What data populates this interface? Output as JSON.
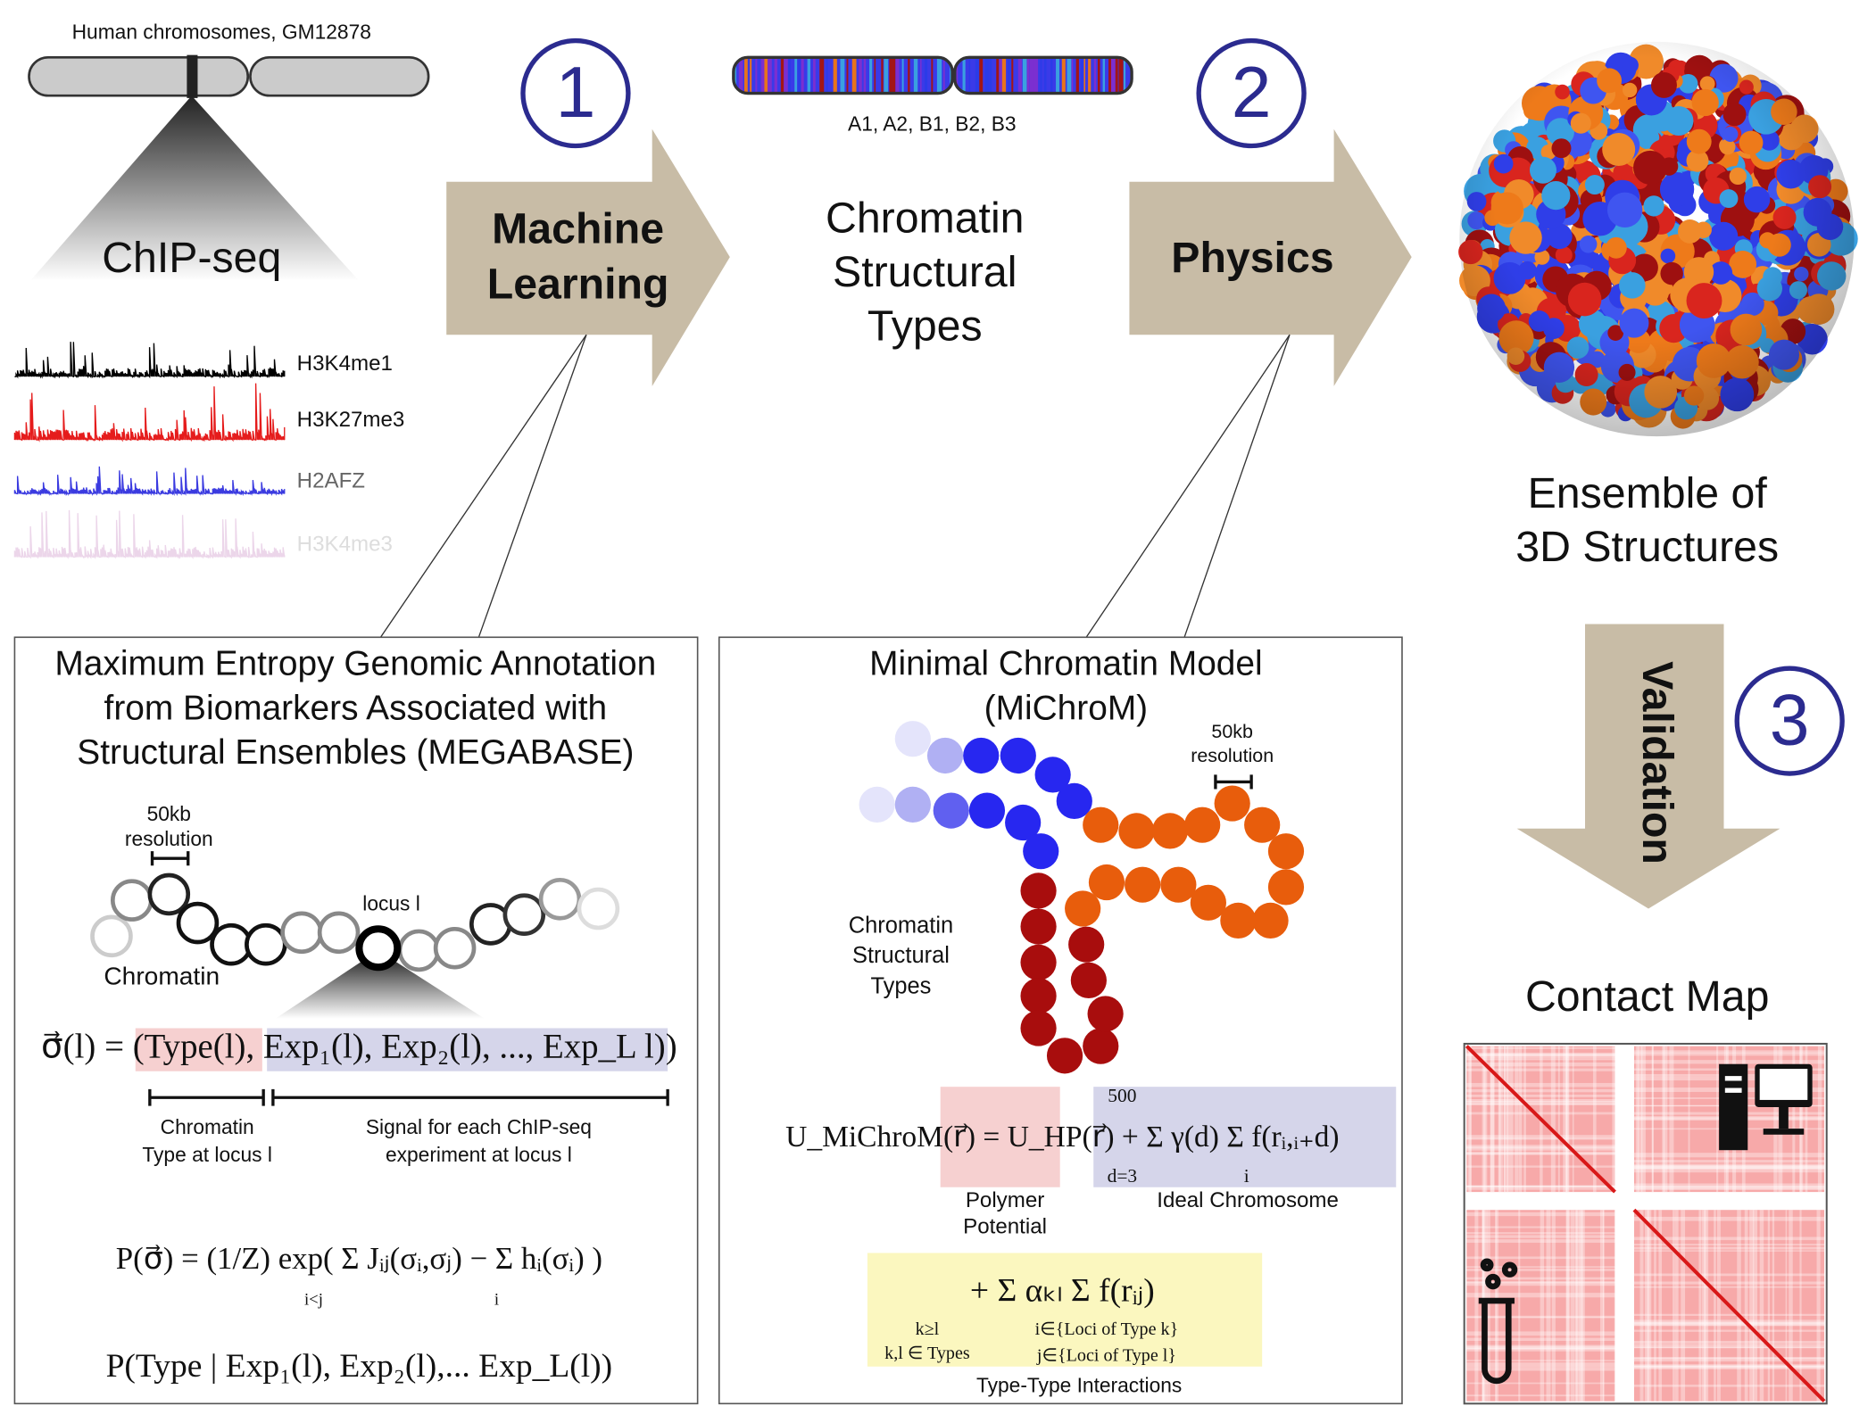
{
  "top": {
    "chromosome_label": "Human chromosomes, GM12878",
    "chipseq": "ChIP-seq",
    "tracks": [
      "H3K4me1",
      "H3K27me3",
      "H2AFZ",
      "H3K4me3"
    ],
    "types_label": "A1, A2, B1, B2, B3",
    "structural_types": [
      "Chromatin",
      "Structural",
      "Types"
    ],
    "ensemble": [
      "Ensemble of",
      "3D Structures"
    ],
    "contact_map": "Contact Map"
  },
  "steps": [
    {
      "number": "1",
      "label": [
        "Machine",
        "Learning"
      ]
    },
    {
      "number": "2",
      "label": [
        "Physics"
      ]
    },
    {
      "number": "3",
      "label": [
        "Validation"
      ]
    }
  ],
  "megabase": {
    "title": [
      "Maximum Entropy Genomic Annotation",
      "from Biomarkers Associated with",
      "Structural Ensembles (MEGABASE)"
    ],
    "resolution": [
      "50kb",
      "resolution"
    ],
    "locus": "locus l",
    "chromatin": "Chromatin",
    "equation": [
      "σ⃗(l) = (",
      "Type(l)",
      ", Exp₁(l), Exp₂(l), ..., Exp_L  l)",
      ")"
    ],
    "type_note": [
      "Chromatin",
      "Type at locus l"
    ],
    "signal_note": [
      "Signal for each ChIP-seq",
      "experiment at locus l"
    ],
    "probability": "P(σ⃗) = (1/Z) exp( Σ Jᵢⱼ(σᵢ,σⱼ) − Σ hᵢ(σᵢ) )",
    "probability_limits": [
      "i<j",
      "i"
    ],
    "conditional": "P(Type | Exp₁(l), Exp₂(l),... Exp_L(l))"
  },
  "michrom": {
    "title": [
      "Minimal Chromatin Model",
      "(MiChroM)"
    ],
    "resolution": [
      "50kb",
      "resolution"
    ],
    "types": [
      "Chromatin",
      "Structural",
      "Types"
    ],
    "equation": [
      "U_MiChroM(r⃗) = ",
      "U_HP(r⃗)",
      " + ",
      "Σ γ(d) Σ f(rᵢ,ᵢ₊d)"
    ],
    "sum_limits": [
      "500",
      "d=3",
      "i"
    ],
    "polymer": [
      "Polymer",
      "Potential"
    ],
    "ideal": "Ideal Chromosome",
    "interactions": "+ Σ αₖₗ Σ f(rᵢⱼ)",
    "interaction_limits": [
      "k≥l",
      "k,l ∈ Types",
      "i∈{Loci of Type k}",
      "j∈{Loci of Type  l}"
    ],
    "interactions_label": "Type-Type Interactions"
  }
}
